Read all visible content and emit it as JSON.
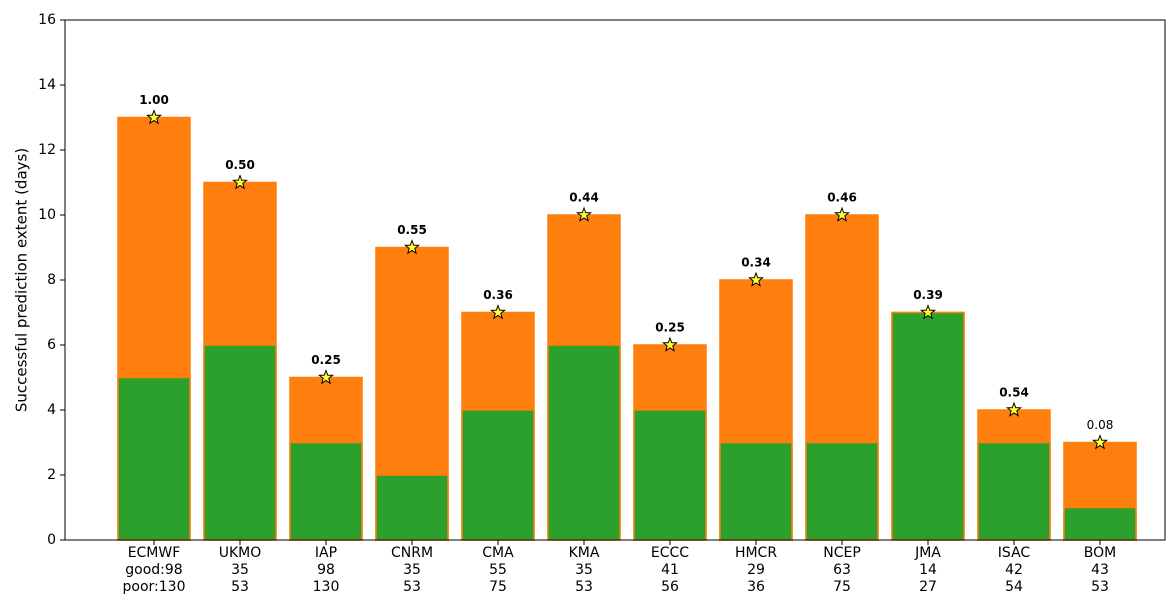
{
  "chart_data": {
    "type": "bar",
    "y_label": "Successful prediction extent (days)",
    "categories": [
      "ECMWF",
      "UKMO",
      "IAP",
      "CNRM",
      "CMA",
      "KMA",
      "ECCC",
      "HMCR",
      "NCEP",
      "JMA",
      "ISAC",
      "BOM"
    ],
    "good_counts": [
      {
        "value": 98,
        "label": "good:98"
      },
      35,
      98,
      35,
      55,
      35,
      41,
      29,
      63,
      14,
      42,
      43
    ],
    "poor_counts": [
      {
        "value": 130,
        "label": "poor:130"
      },
      53,
      130,
      53,
      75,
      53,
      56,
      36,
      75,
      27,
      54,
      53
    ],
    "series": [
      {
        "color": "#ff7f0e",
        "values": [
          13,
          11,
          5,
          9,
          7,
          10,
          6,
          8,
          10,
          7,
          4,
          3
        ]
      },
      {
        "color": "#2ca02c",
        "values": [
          5,
          6,
          3,
          2,
          4,
          6,
          4,
          3,
          3,
          7,
          3,
          1
        ]
      }
    ],
    "scores": {
      "values": [
        1.0,
        0.5,
        0.25,
        0.55,
        0.36,
        0.44,
        0.25,
        0.34,
        0.46,
        0.39,
        0.54,
        0.08
      ],
      "value_labels": [
        "1.00",
        "0.50",
        "0.25",
        "0.55",
        "0.36",
        "0.44",
        "0.25",
        "0.34",
        "0.46",
        "0.39",
        "0.54",
        "0.08"
      ],
      "bold": [
        true,
        true,
        true,
        true,
        true,
        true,
        true,
        true,
        true,
        true,
        true,
        false
      ],
      "marker_color": "#ffff33"
    },
    "ylim": [
      0,
      16
    ],
    "yticks": [
      0,
      2,
      4,
      6,
      8,
      10,
      12,
      14,
      16
    ]
  }
}
